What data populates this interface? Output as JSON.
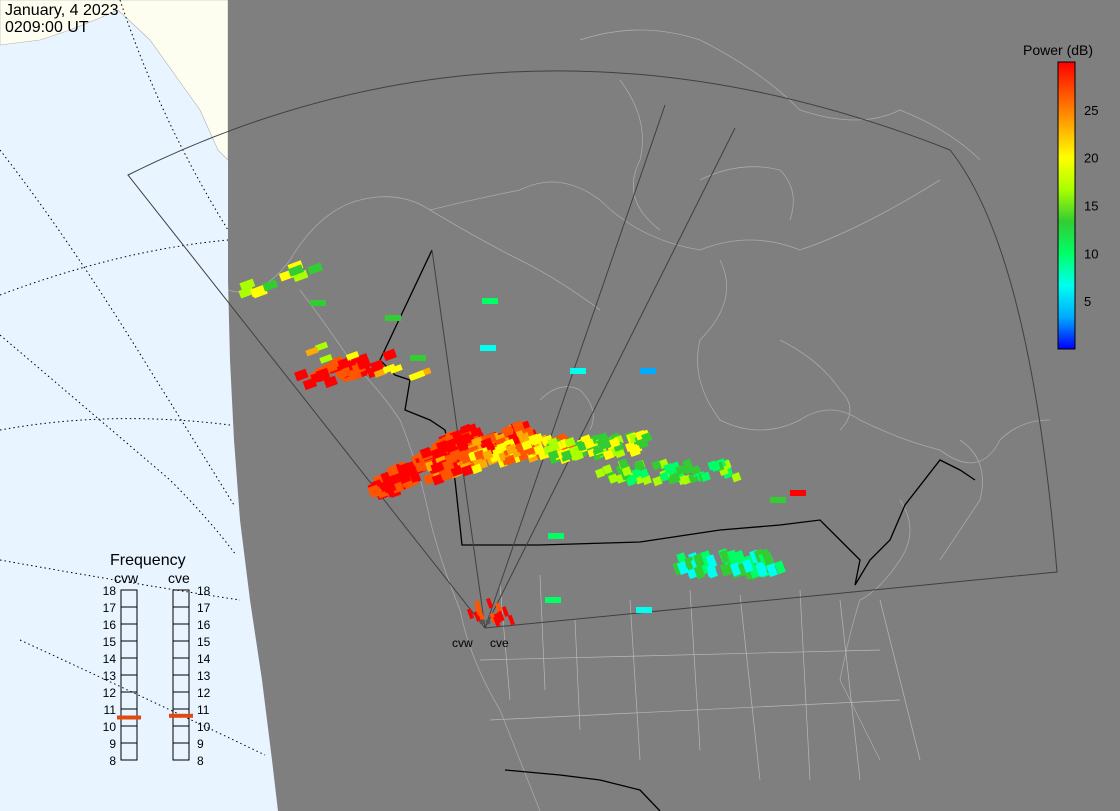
{
  "header": {
    "date": "January, 4 2023",
    "time": "0209:00 UT"
  },
  "colorbar": {
    "title": "Power (dB)",
    "ticks": [
      "25",
      "20",
      "15",
      "10",
      "5"
    ],
    "tick_values": [
      25,
      20,
      15,
      10,
      5
    ],
    "range": [
      0,
      30
    ],
    "colors": [
      "#0000ff",
      "#00aaff",
      "#00ffee",
      "#00ff66",
      "#33cc33",
      "#aaff00",
      "#ffff00",
      "#ffaa00",
      "#ff5500",
      "#ff0000"
    ]
  },
  "frequency_panel": {
    "title": "Frequency",
    "radars": [
      {
        "name": "cvw",
        "selected_mhz": 10.5
      },
      {
        "name": "cve",
        "selected_mhz": 10.6
      }
    ],
    "scale_labels": [
      "18",
      "17",
      "16",
      "15",
      "14",
      "13",
      "12",
      "11",
      "10",
      "9",
      "8"
    ],
    "scale_min": 8,
    "scale_max": 18,
    "marker_color": "#e04a10"
  },
  "radar_labels": [
    "cvw",
    "cve"
  ],
  "colors": {
    "ocean": "#e8f4ff",
    "land_outside": "#fdfdf0",
    "night": "#7f7f7f",
    "coast": "#a9a9a9",
    "border": "#000000"
  }
}
